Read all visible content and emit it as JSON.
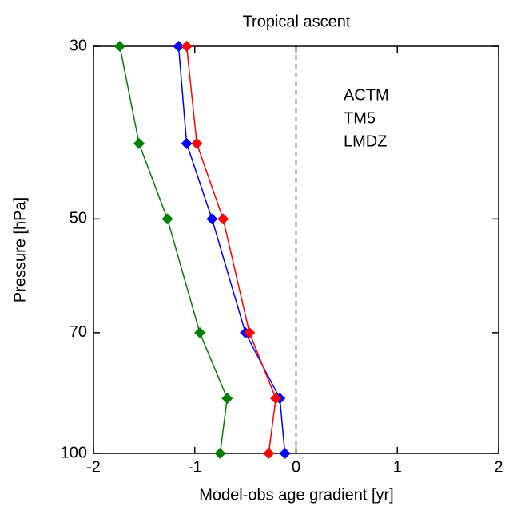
{
  "chart_data": {
    "type": "line",
    "title": "Tropical ascent",
    "x_label": "Model-obs age gradient [yr]",
    "y_label": "Pressure [hPa]",
    "y": [
      30,
      40,
      50,
      70,
      85,
      100
    ],
    "series": [
      {
        "name": "ACTM",
        "color": "#0000ff",
        "values": [
          -1.16,
          -1.08,
          -0.83,
          -0.5,
          -0.16,
          -0.11
        ]
      },
      {
        "name": "TM5",
        "color": "#008000",
        "values": [
          -1.74,
          -1.55,
          -1.27,
          -0.95,
          -0.68,
          -0.75
        ]
      },
      {
        "name": "LMDZ",
        "color": "#ff0000",
        "values": [
          -1.08,
          -0.98,
          -0.72,
          -0.46,
          -0.2,
          -0.27
        ]
      }
    ],
    "xlim": [
      -2,
      2
    ],
    "xticks": [
      -2,
      -1,
      0,
      1,
      2
    ],
    "ylim": [
      30,
      100
    ],
    "yticks": [
      30,
      50,
      70,
      100
    ],
    "y_log": true,
    "y_inverted": true,
    "reference_line_x": 0,
    "legend": "upper right"
  }
}
